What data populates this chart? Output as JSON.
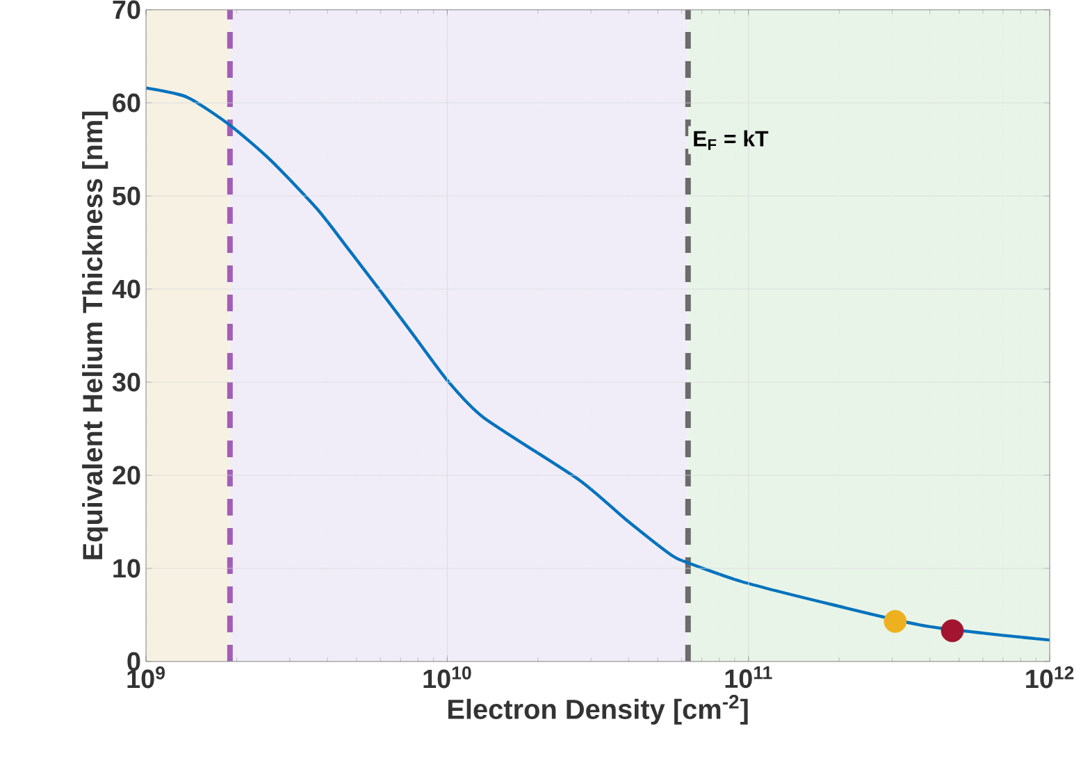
{
  "chart_data": {
    "type": "line",
    "xlabel": "Electron Density [cm$^{-2}$]",
    "ylabel": "Equivalent Helium Thickness [nm]",
    "log": "x",
    "grid": true,
    "line_style": "solid",
    "marker": "none",
    "xlim": [
      1000000000.0,
      1000000000000.0
    ],
    "ylim": [
      0,
      70
    ],
    "xticks": [
      {
        "value": 1000000000.0,
        "label": "10$^{9}$"
      },
      {
        "value": 10000000000.0,
        "label": "10$^{10}$"
      },
      {
        "value": 100000000000.0,
        "label": "10$^{11}$"
      },
      {
        "value": 1000000000000.0,
        "label": "10$^{12}$"
      }
    ],
    "yticks": [
      0,
      10,
      20,
      30,
      40,
      50,
      60,
      70
    ],
    "series": [
      {
        "color": "#0072bd",
        "x": [
          1000000000.0,
          1370000000.0,
          1900000000.0,
          2600000000.0,
          3700000000.0,
          4670000000.0,
          5900000000.0,
          7670000000.0,
          10000000000.0,
          13200000000.0,
          27400000000.0,
          39000000000.0,
          55600000000.0,
          63000000000.0,
          94500000000.0,
          190000000000.0,
          390000000000.0,
          1000000000000.0
        ],
        "values": [
          61.6,
          60.6,
          57.6,
          53.8,
          48.6,
          44.4,
          40.1,
          35.2,
          30.2,
          26.2,
          19.5,
          15.3,
          11.4,
          10.6,
          8.6,
          6.1,
          3.8,
          2.3
        ]
      },
      {
        "type": "scatter",
        "marker": "circle",
        "color": "#edb120",
        "x": [
          307000000000.0
        ],
        "values": [
          4.3
        ]
      },
      {
        "type": "scatter",
        "marker": "circle",
        "color": "#a2142f",
        "x": [
          475000000000.0
        ],
        "values": [
          3.3
        ]
      }
    ],
    "bands": [
      {
        "axis": "x",
        "from": 1000000000.0,
        "to": 1900000000.0,
        "color": "#f7f1e3"
      },
      {
        "axis": "x",
        "from": 1900000000.0,
        "to": 63000000000.0,
        "color": "#f1edf8"
      },
      {
        "axis": "x",
        "from": 63000000000.0,
        "to": 1000000000000.0,
        "color": "#e8f4e8"
      }
    ],
    "ref_lines": [
      {
        "axis": "x",
        "value": 1900000000.0,
        "color": "#a05fb5",
        "line_style": "dashed"
      },
      {
        "axis": "x",
        "value": 63000000000.0,
        "color": "#6b6b6b",
        "line_style": "dashed",
        "label": "E$_{F}$ = kT"
      }
    ]
  }
}
